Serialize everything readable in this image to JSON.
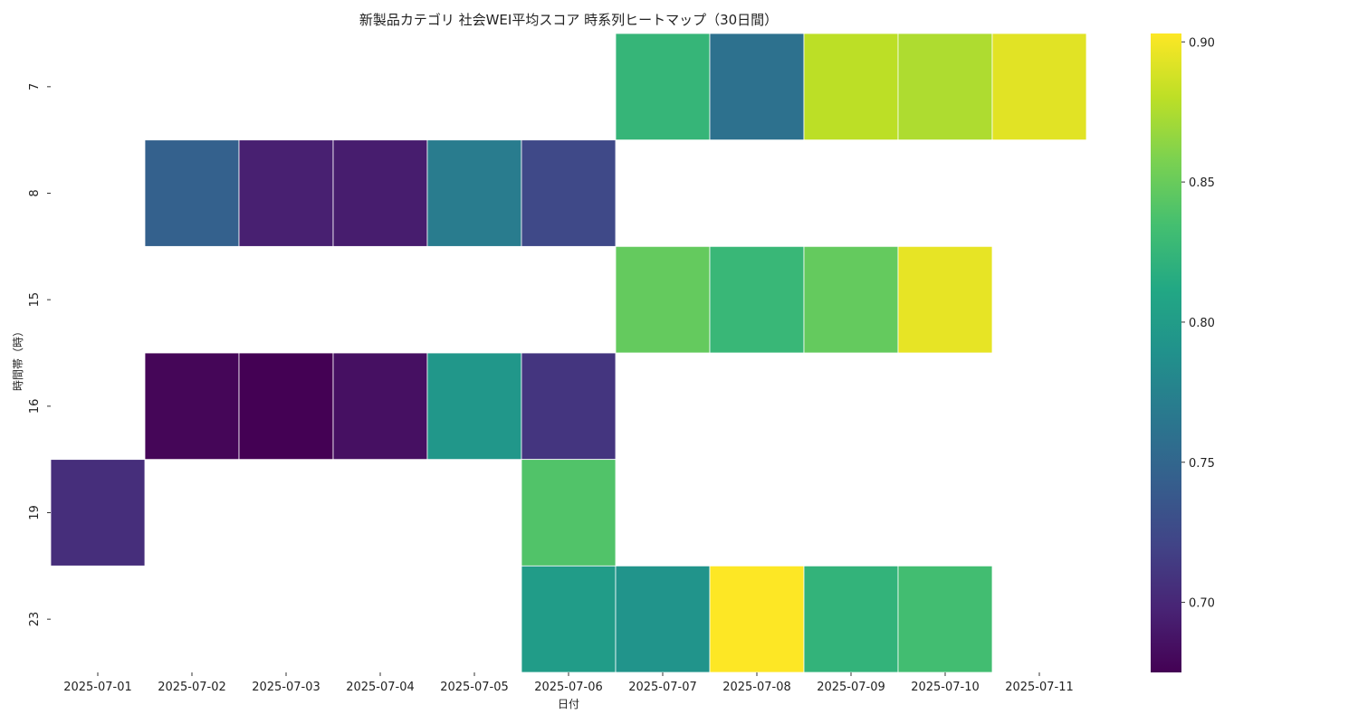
{
  "chart_data": {
    "type": "heatmap",
    "title": "新製品カテゴリ 社会WEI平均スコア 時系列ヒートマップ（30日間）",
    "xlabel": "日付",
    "ylabel": "時間帯（時）",
    "x_categories": [
      "2025-07-01",
      "2025-07-02",
      "2025-07-03",
      "2025-07-04",
      "2025-07-05",
      "2025-07-06",
      "2025-07-07",
      "2025-07-08",
      "2025-07-09",
      "2025-07-10",
      "2025-07-11"
    ],
    "y_categories": [
      "7",
      "8",
      "15",
      "16",
      "19",
      "23"
    ],
    "values": [
      [
        null,
        null,
        null,
        null,
        null,
        null,
        0.825,
        0.76,
        0.88,
        0.875,
        0.893
      ],
      [
        null,
        0.745,
        0.695,
        0.693,
        0.77,
        0.725,
        null,
        null,
        null,
        null,
        null
      ],
      [
        null,
        null,
        null,
        null,
        null,
        null,
        0.848,
        0.827,
        0.848,
        0.895,
        null
      ],
      [
        null,
        0.678,
        0.675,
        0.685,
        0.795,
        0.71,
        null,
        null,
        null,
        null,
        null
      ],
      [
        0.705,
        null,
        null,
        null,
        null,
        0.84,
        null,
        null,
        null,
        null,
        null
      ],
      [
        null,
        null,
        null,
        null,
        null,
        0.8,
        0.792,
        0.903,
        0.823,
        0.833,
        null
      ]
    ],
    "colormap": "viridis",
    "value_range": [
      0.675,
      0.903
    ],
    "colorbar_ticks": [
      0.7,
      0.75,
      0.8,
      0.85,
      0.9
    ],
    "colorbar_tick_labels": [
      "0.70",
      "0.75",
      "0.80",
      "0.85",
      "0.90"
    ],
    "grid": false
  }
}
